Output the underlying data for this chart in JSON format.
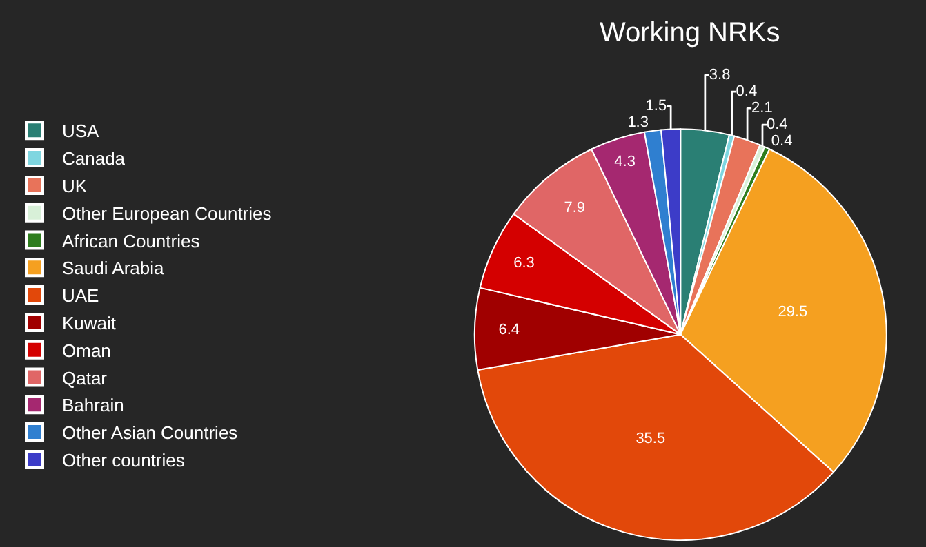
{
  "chart_data": {
    "type": "pie",
    "title": "Working NRKs",
    "legend": "top left",
    "data_labels": true,
    "categories": [
      "USA",
      "Canada",
      "UK",
      "Other European Countries",
      "African Countries",
      "Saudi Arabia",
      "UAE",
      "Kuwait",
      "Oman",
      "Qatar",
      "Bahrain",
      "Other Asian Countries",
      "Other countries"
    ],
    "values": [
      3.8,
      0.4,
      2.1,
      0.4,
      0.4,
      29.5,
      35.5,
      6.4,
      6.3,
      7.9,
      4.3,
      1.3,
      1.5
    ],
    "colors": [
      "#2a7f74",
      "#7fd6e0",
      "#e8735a",
      "#d8f0d8",
      "#2e7d1e",
      "#f5a020",
      "#e2480a",
      "#a00000",
      "#d40000",
      "#e06666",
      "#a52870",
      "#2f7fd0",
      "#3c3cc8"
    ]
  }
}
